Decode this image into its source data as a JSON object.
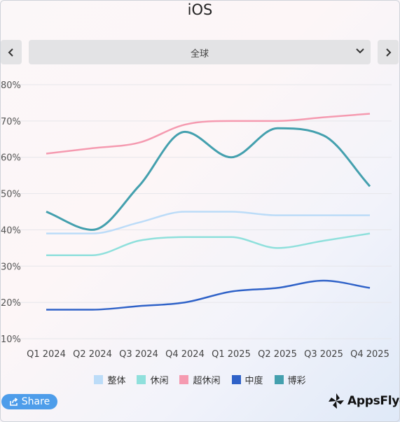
{
  "header": {
    "title": "iOS"
  },
  "filter": {
    "selected": "全球"
  },
  "chart_data": {
    "type": "line",
    "title": "",
    "xlabel": "",
    "ylabel": "",
    "categories": [
      "Q1 2024",
      "Q2 2024",
      "Q3 2024",
      "Q4 2024",
      "Q1 2025",
      "Q2 2025",
      "Q3 2025",
      "Q4 2025"
    ],
    "ylim": [
      10,
      80
    ],
    "yticks": [
      10,
      20,
      30,
      40,
      50,
      60,
      70,
      80
    ],
    "ytick_labels": [
      "10%",
      "20%",
      "30%",
      "40%",
      "50%",
      "60%",
      "70%",
      "80%"
    ],
    "grid": true,
    "legend_position": "bottom",
    "series": [
      {
        "name": "整体",
        "color": "#bcdcf8",
        "values": [
          39,
          39,
          42,
          45,
          45,
          44,
          44,
          44
        ]
      },
      {
        "name": "休闲",
        "color": "#8fe0dc",
        "values": [
          33,
          33,
          37,
          38,
          38,
          35,
          37,
          39
        ]
      },
      {
        "name": "超休闲",
        "color": "#f59ab0",
        "values": [
          61,
          62.5,
          64,
          69,
          70,
          70,
          71,
          72
        ]
      },
      {
        "name": "中度",
        "color": "#2f62c8",
        "values": [
          18,
          18,
          19,
          20,
          23,
          24,
          26,
          24
        ]
      },
      {
        "name": "博彩",
        "color": "#44a0ae",
        "values": [
          45,
          40,
          52,
          67,
          60,
          68,
          66,
          52
        ]
      }
    ]
  },
  "share": {
    "label": "Share"
  },
  "brand": {
    "name": "AppsFlyer"
  },
  "icons": {
    "prev": "chevron-left-icon",
    "next": "chevron-right-icon",
    "dropdown": "chevron-down-icon",
    "share": "share-icon",
    "logo": "appsflyer-logo-icon"
  }
}
